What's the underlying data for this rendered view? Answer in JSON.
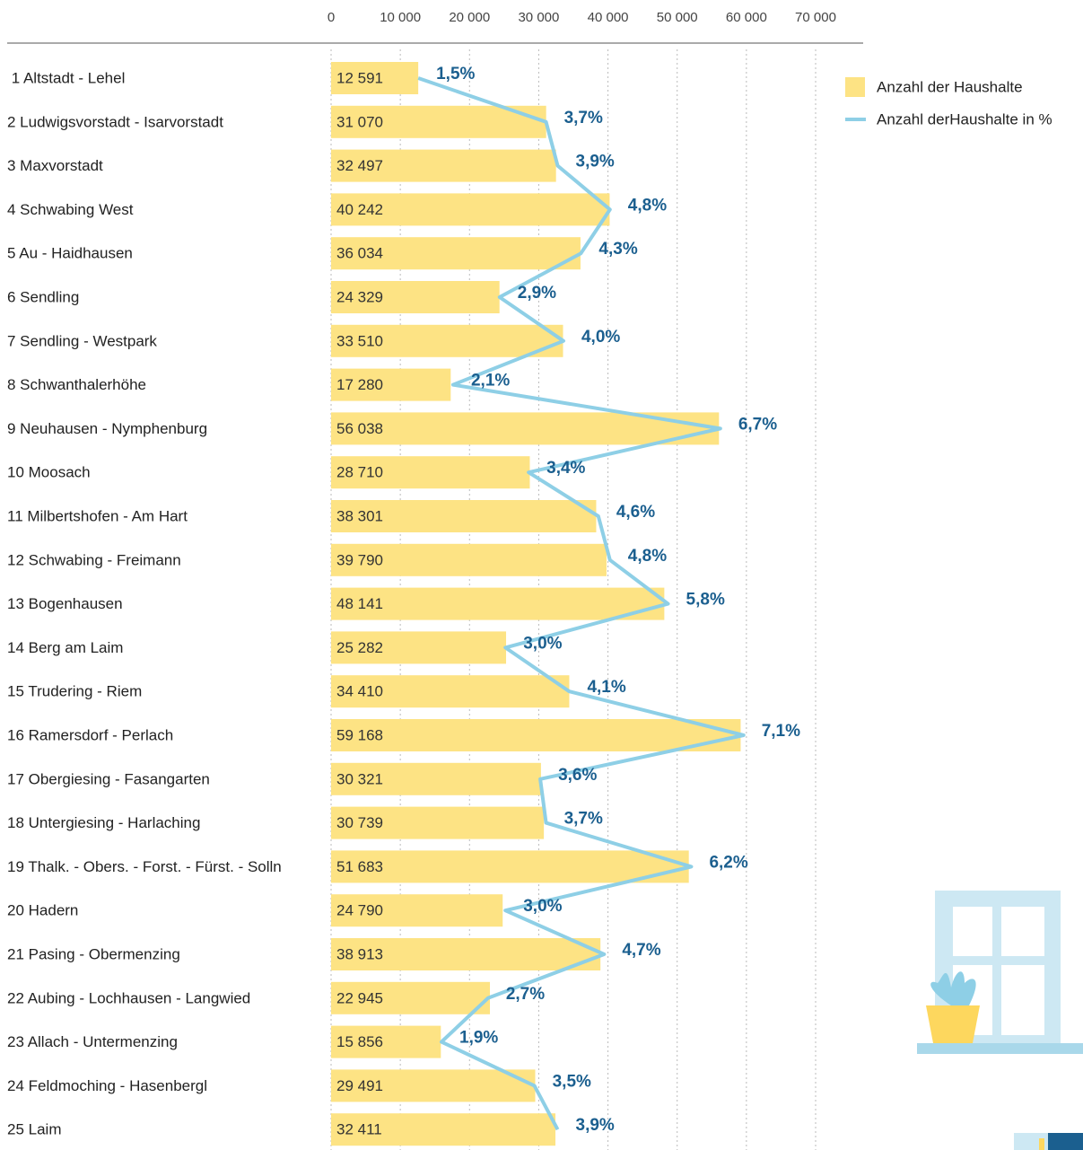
{
  "chart_data": {
    "type": "bar",
    "orientation": "horizontal",
    "categories": [
      " 1 Altstadt - Lehel",
      "2 Ludwigsvorstadt - Isarvorstadt",
      "3 Maxvorstadt",
      "4 Schwabing West",
      "5 Au - Haidhausen",
      "6 Sendling",
      "7 Sendling - Westpark",
      "8 Schwanthalerhöhe",
      "9 Neuhausen - Nymphenburg",
      "10 Moosach",
      "11 Milbertshofen - Am Hart",
      "12 Schwabing - Freimann",
      "13 Bogenhausen",
      "14 Berg am Laim",
      "15 Trudering - Riem",
      "16 Ramersdorf - Perlach",
      "17 Obergiesing - Fasangarten",
      "18 Untergiesing - Harlaching",
      "19 Thalk. - Obers. - Forst. - Fürst. - Solln",
      "20 Hadern",
      "21 Pasing - Obermenzing",
      "22 Aubing - Lochhausen - Langwied",
      "23 Allach - Untermenzing",
      "24 Feldmoching - Hasenbergl",
      "25 Laim"
    ],
    "series": [
      {
        "name": "Anzahl der Haushalte",
        "color": "#fde384",
        "values": [
          12591,
          31070,
          32497,
          40242,
          36034,
          24329,
          33510,
          17280,
          56038,
          28710,
          38301,
          39790,
          48141,
          25282,
          34410,
          59168,
          30321,
          30739,
          51683,
          24790,
          38913,
          22945,
          15856,
          29491,
          32411
        ],
        "value_labels": [
          "12 591",
          "31 070",
          "32 497",
          "40 242",
          "36 034",
          "24 329",
          "33 510",
          "17 280",
          "56 038",
          "28 710",
          "38 301",
          "39 790",
          "48 141",
          "25 282",
          "34 410",
          "59 168",
          "30 321",
          "30 739",
          "51 683",
          "24 790",
          "38 913",
          "22 945",
          "15 856",
          "29 491",
          "32 411"
        ]
      },
      {
        "name": "Anzahl derHaushalte in %",
        "type": "line",
        "axis": "x2",
        "color": "#8ecfe6",
        "values": [
          1.5,
          3.7,
          3.9,
          4.8,
          4.3,
          2.9,
          4.0,
          2.1,
          6.7,
          3.4,
          4.6,
          4.8,
          5.8,
          3.0,
          4.1,
          7.1,
          3.6,
          3.7,
          6.2,
          3.0,
          4.7,
          2.7,
          1.9,
          3.5,
          3.9
        ],
        "value_labels": [
          "1,5%",
          "3,7%",
          "3,9%",
          "4,8%",
          "4,3%",
          "2,9%",
          "4,0%",
          "2,1%",
          "6,7%",
          "3,4%",
          "4,6%",
          "4,8%",
          "5,8%",
          "3,0%",
          "4,1%",
          "7,1%",
          "3,6%",
          "3,7%",
          "6,2%",
          "3,0%",
          "4,7%",
          "2,7%",
          "1,9%",
          "3,5%",
          "3,9%"
        ]
      }
    ],
    "xlim": [
      0,
      70000
    ],
    "xticks": [
      0,
      {
        "value": 10000,
        "label": "10 000"
      },
      {
        "value": 20000,
        "label": "20 000"
      },
      {
        "value": 30000,
        "label": "30 000"
      },
      {
        "value": 40000,
        "label": "40 000"
      },
      {
        "value": 50000,
        "label": "50 000"
      },
      {
        "value": 60000,
        "label": "60 000"
      },
      {
        "value": 70000,
        "label": "70 000"
      }
    ],
    "x2lim": [
      0,
      8.34
    ],
    "grid": true,
    "legend": "upper right"
  }
}
